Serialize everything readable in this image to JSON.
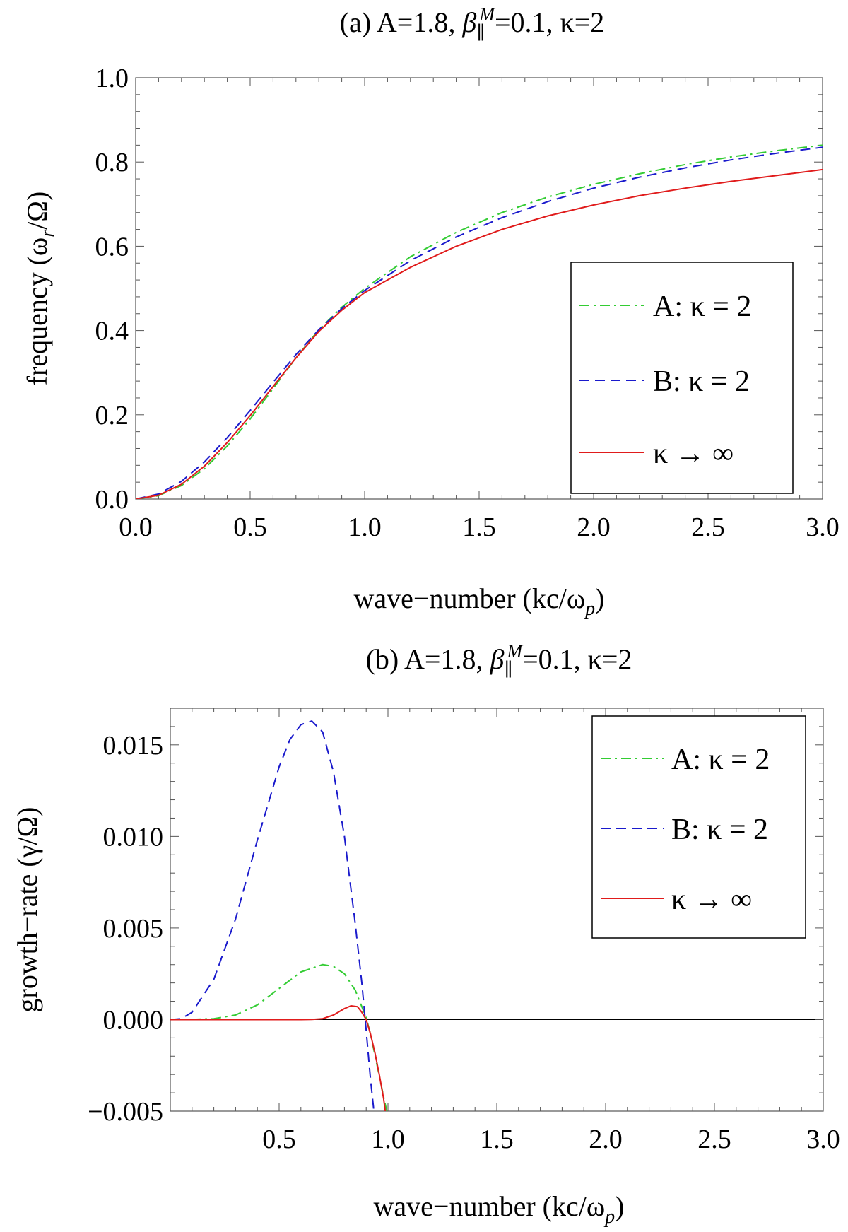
{
  "chart_data": [
    {
      "type": "line",
      "title": "(a) A=1.8, β∥M=0.1, κ=2",
      "title_parts": {
        "prefix": "(a) A=1.8, ",
        "beta": "β",
        "beta_sub": "∥",
        "beta_sup": "M",
        "suffix": "=0.1, κ=2"
      },
      "xlabel": "wave−number (kc/ωp)",
      "xlabel_parts": {
        "main": "wave−number (kc/ω",
        "sub": "p",
        "close": ")"
      },
      "ylabel": "frequency (ωr/Ω)",
      "ylabel_parts": {
        "main": "frequency (ω",
        "sub": "r",
        "close": "/Ω)"
      },
      "xlim": [
        0,
        3
      ],
      "ylim": [
        0,
        1
      ],
      "xticks": [
        "0.0",
        "0.5",
        "1.0",
        "1.5",
        "2.0",
        "2.5",
        "3.0"
      ],
      "yticks": [
        "0.0",
        "0.2",
        "0.4",
        "0.6",
        "0.8",
        "1.0"
      ],
      "legend_position": "center-right",
      "series": [
        {
          "name": "A: κ = 2",
          "color": "#33cc33",
          "style": "dash-dot",
          "x": [
            0,
            0.1,
            0.2,
            0.3,
            0.4,
            0.5,
            0.6,
            0.7,
            0.8,
            0.9,
            1.0,
            1.2,
            1.4,
            1.6,
            1.8,
            2.0,
            2.2,
            2.4,
            2.6,
            2.8,
            3.0
          ],
          "y": [
            0,
            0.008,
            0.032,
            0.072,
            0.126,
            0.19,
            0.262,
            0.335,
            0.402,
            0.455,
            0.5,
            0.575,
            0.633,
            0.68,
            0.717,
            0.747,
            0.772,
            0.794,
            0.812,
            0.827,
            0.84
          ]
        },
        {
          "name": "B: κ = 2",
          "color": "#1a1acc",
          "style": "dashed",
          "x": [
            0,
            0.1,
            0.2,
            0.3,
            0.4,
            0.5,
            0.6,
            0.7,
            0.8,
            0.9,
            1.0,
            1.2,
            1.4,
            1.6,
            1.8,
            2.0,
            2.2,
            2.4,
            2.6,
            2.8,
            3.0
          ],
          "y": [
            0,
            0.012,
            0.042,
            0.088,
            0.146,
            0.21,
            0.277,
            0.343,
            0.402,
            0.452,
            0.495,
            0.566,
            0.622,
            0.668,
            0.706,
            0.738,
            0.764,
            0.786,
            0.805,
            0.821,
            0.835
          ]
        },
        {
          "name": "κ → ∞",
          "color": "#e01b1b",
          "style": "solid",
          "x": [
            0,
            0.1,
            0.2,
            0.3,
            0.4,
            0.5,
            0.6,
            0.7,
            0.8,
            0.9,
            1.0,
            1.2,
            1.4,
            1.6,
            1.8,
            2.0,
            2.2,
            2.4,
            2.6,
            2.8,
            3.0
          ],
          "y": [
            0,
            0.009,
            0.035,
            0.078,
            0.134,
            0.198,
            0.267,
            0.335,
            0.398,
            0.448,
            0.49,
            0.55,
            0.6,
            0.64,
            0.672,
            0.698,
            0.72,
            0.738,
            0.754,
            0.768,
            0.782
          ]
        }
      ]
    },
    {
      "type": "line",
      "title": "(b) A=1.8, β∥M=0.1, κ=2",
      "title_parts": {
        "prefix": "(b) A=1.8, ",
        "beta": "β",
        "beta_sub": "∥",
        "beta_sup": "M",
        "suffix": "=0.1, κ=2"
      },
      "xlabel": "wave−number (kc/ωp)",
      "xlabel_parts": {
        "main": "wave−number (kc/ω",
        "sub": "p",
        "close": ")"
      },
      "ylabel": "growth−rate (γ/Ω)",
      "xlim": [
        0,
        3
      ],
      "ylim": [
        -0.005,
        0.017
      ],
      "xticks": [
        "0.5",
        "1.0",
        "1.5",
        "2.0",
        "2.5",
        "3.0"
      ],
      "yticks": [
        "−0.005",
        "0.000",
        "0.005",
        "0.010",
        "0.015"
      ],
      "zero_line": true,
      "legend_position": "top-right",
      "series": [
        {
          "name": "A: κ = 2",
          "color": "#33cc33",
          "style": "dash-dot",
          "x": [
            0,
            0.1,
            0.2,
            0.3,
            0.4,
            0.5,
            0.6,
            0.7,
            0.75,
            0.8,
            0.85,
            0.88,
            0.9,
            0.92,
            0.95,
            0.98,
            1.0
          ],
          "y": [
            0,
            1e-05,
            5e-05,
            0.00025,
            0.0008,
            0.0017,
            0.0026,
            0.003,
            0.0029,
            0.0025,
            0.0016,
            0.0007,
            0.0001,
            -0.0008,
            -0.0025,
            -0.0042,
            -0.0053
          ]
        },
        {
          "name": "B: κ = 2",
          "color": "#1a1acc",
          "style": "dashed",
          "x": [
            0,
            0.05,
            0.1,
            0.2,
            0.3,
            0.4,
            0.5,
            0.55,
            0.6,
            0.65,
            0.7,
            0.75,
            0.8,
            0.85,
            0.88,
            0.9,
            0.92,
            0.94
          ],
          "y": [
            0,
            5e-05,
            0.0004,
            0.0022,
            0.0055,
            0.0098,
            0.0138,
            0.0153,
            0.0161,
            0.0163,
            0.0157,
            0.0135,
            0.01,
            0.0052,
            0.002,
            -0.0006,
            -0.0033,
            -0.0055
          ]
        },
        {
          "name": "κ → ∞",
          "color": "#e01b1b",
          "style": "solid",
          "x": [
            0,
            0.2,
            0.4,
            0.5,
            0.6,
            0.65,
            0.7,
            0.75,
            0.8,
            0.83,
            0.86,
            0.88,
            0.9,
            0.92,
            0.94,
            0.96,
            0.98,
            0.99
          ],
          "y": [
            0,
            0,
            0,
            0,
            0,
            1e-05,
            5e-05,
            0.00025,
            0.0006,
            0.00075,
            0.0007,
            0.0004,
            0.0,
            -0.0008,
            -0.0018,
            -0.003,
            -0.0043,
            -0.0052
          ]
        }
      ]
    }
  ]
}
